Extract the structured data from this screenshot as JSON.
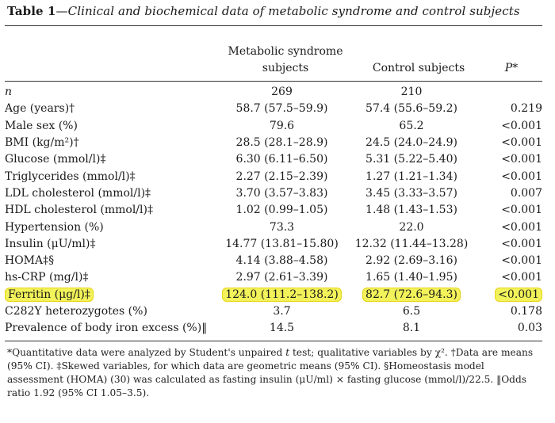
{
  "title": {
    "label": "Table 1",
    "text": "—Clinical and biochemical data of metabolic syndrome and control subjects"
  },
  "columns": {
    "ms_line1": "Metabolic syndrome",
    "ms_line2": "subjects",
    "control": "Control subjects",
    "p": "P*"
  },
  "rows": [
    {
      "label": "n",
      "ms": "269",
      "control": "210",
      "p": ""
    },
    {
      "label": "Age (years)†",
      "ms": "58.7 (57.5–59.9)",
      "control": "57.4 (55.6–59.2)",
      "p": "0.219"
    },
    {
      "label": "Male sex (%)",
      "ms": "79.6",
      "control": "65.2",
      "p": "<0.001"
    },
    {
      "label": "BMI (kg/m²)†",
      "ms": "28.5 (28.1–28.9)",
      "control": "24.5 (24.0–24.9)",
      "p": "<0.001"
    },
    {
      "label": "Glucose (mmol/l)‡",
      "ms": "6.30 (6.11–6.50)",
      "control": "5.31 (5.22–5.40)",
      "p": "<0.001"
    },
    {
      "label": "Triglycerides (mmol/l)‡",
      "ms": "2.27 (2.15–2.39)",
      "control": "1.27 (1.21–1.34)",
      "p": "<0.001"
    },
    {
      "label": "LDL cholesterol (mmol/l)‡",
      "ms": "3.70 (3.57–3.83)",
      "control": "3.45 (3.33–3.57)",
      "p": "0.007"
    },
    {
      "label": "HDL cholesterol (mmol/l)‡",
      "ms": "1.02 (0.99–1.05)",
      "control": "1.48 (1.43–1.53)",
      "p": "<0.001"
    },
    {
      "label": "Hypertension (%)",
      "ms": "73.3",
      "control": "22.0",
      "p": "<0.001"
    },
    {
      "label": "Insulin (μU/ml)‡",
      "ms": "14.77 (13.81–15.80)",
      "control": "12.32 (11.44–13.28)",
      "p": "<0.001"
    },
    {
      "label": "HOMA‡§",
      "ms": "4.14 (3.88–4.58)",
      "control": "2.92 (2.69–3.16)",
      "p": "<0.001"
    },
    {
      "label": "hs-CRP (mg/l)‡",
      "ms": "2.97 (2.61–3.39)",
      "control": "1.65 (1.40–1.95)",
      "p": "<0.001"
    },
    {
      "label": "Ferritin (μg/l)‡",
      "ms": "124.0 (111.2–138.2)",
      "control": "82.7 (72.6–94.3)",
      "p": "<0.001"
    },
    {
      "label": "C282Y heterozygotes (%)",
      "ms": "3.7",
      "control": "6.5",
      "p": "0.178"
    },
    {
      "label": "Prevalence of body iron excess (%)‖",
      "ms": "14.5",
      "control": "8.1",
      "p": "0.03"
    }
  ],
  "footnote": {
    "a": "*Quantitative data were analyzed by Student's unpaired ",
    "a_italic": "t",
    "b": " test; qualitative variables by χ². †Data are means (95% CI). ‡Skewed variables, for which data are geometric means (95% CI). §Homeostasis model assessment (HOMA) (30) was calculated as fasting insulin (μU/ml) × fasting glucose (mmol/l)/22.5. ‖Odds ratio 1.92 (95% CI 1.05–3.5)."
  },
  "highlight": {
    "row_label": "Ferritin (μg/l)‡",
    "color": "#f2f25a"
  }
}
